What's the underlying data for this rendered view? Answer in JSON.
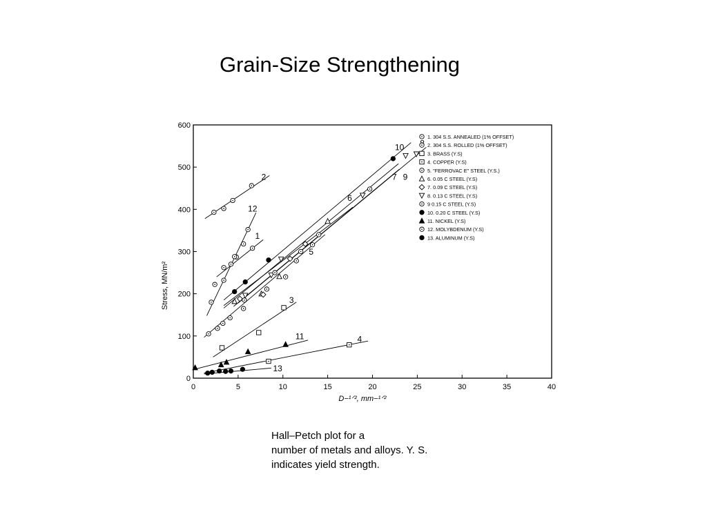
{
  "slide": {
    "title": "Grain-Size Strengthening",
    "caption": [
      "Hall–Petch plot for a",
      "number of metals and alloys. Y. S.",
      "indicates yield strength."
    ]
  },
  "chart_data": {
    "type": "scatter",
    "xlabel": "D−¹ᐟ², mm−¹ᐟ²",
    "ylabel": "Stress, MN/m²",
    "xlim": [
      0,
      40
    ],
    "ylim": [
      0,
      600
    ],
    "x_ticks": [
      "0",
      "5",
      "10",
      "15",
      "20",
      "25",
      "30",
      "35",
      "40"
    ],
    "y_ticks": [
      "0",
      "100",
      "200",
      "300",
      "400",
      "500",
      "600"
    ],
    "legend_position": "top-right",
    "series": [
      {
        "name": "1. 304 S.S. ANNEALED (1% OFFSET)",
        "number": "1",
        "marker": "circle-dot",
        "points": [
          [
            3.4,
            262
          ],
          [
            4.2,
            270
          ],
          [
            4.8,
            287
          ],
          [
            6.6,
            308
          ]
        ],
        "line": [
          [
            2.6,
            240
          ],
          [
            7.8,
            328
          ]
        ],
        "label_pos": [
          6.9,
          330
        ]
      },
      {
        "name": "2. 304 S.S. ROLLED (1% OFFSET)",
        "number": "2",
        "marker": "circle-dot",
        "points": [
          [
            2.3,
            393
          ],
          [
            3.4,
            402
          ],
          [
            4.4,
            421
          ],
          [
            6.5,
            456
          ]
        ],
        "line": [
          [
            1.3,
            378
          ],
          [
            8.5,
            480
          ]
        ],
        "label_pos": [
          7.6,
          470
        ]
      },
      {
        "name": "3. BRASS (Y.S)",
        "number": "3",
        "marker": "square",
        "points": [
          [
            3.2,
            72
          ],
          [
            7.3,
            108
          ],
          [
            10.1,
            167
          ]
        ],
        "line": [
          [
            2.2,
            50
          ],
          [
            11.5,
            180
          ]
        ],
        "label_pos": [
          10.7,
          178
        ]
      },
      {
        "name": "4. COPPER (Y.S)",
        "number": "4",
        "marker": "square-dot",
        "points": [
          [
            8.4,
            40
          ],
          [
            17.4,
            79
          ]
        ],
        "line": [
          [
            1.2,
            12
          ],
          [
            19.5,
            88
          ]
        ],
        "label_pos": [
          18.3,
          86
        ]
      },
      {
        "name": "5. \"FERROVAC E\" STEEL (Y.S.)",
        "number": "5",
        "marker": "circle-dot",
        "points": [
          [
            1.7,
            105
          ],
          [
            2.7,
            118
          ],
          [
            3.3,
            130
          ],
          [
            4.1,
            143
          ],
          [
            5.6,
            165
          ],
          [
            8.2,
            211
          ],
          [
            10.3,
            240
          ],
          [
            11.5,
            278
          ],
          [
            13.3,
            316
          ],
          [
            14.0,
            340
          ]
        ],
        "line": [
          [
            1.2,
            97
          ],
          [
            14.7,
            340
          ]
        ],
        "label_pos": [
          12.9,
          293
        ]
      },
      {
        "name": "6. 0.05 C STEEL (Y.S)",
        "number": "6",
        "marker": "triangle",
        "points": [
          [
            4.6,
            182
          ],
          [
            7.6,
            200
          ],
          [
            9.6,
            241
          ],
          [
            15.0,
            372
          ]
        ],
        "line": [
          [
            3.4,
            172
          ],
          [
            17.8,
            405
          ]
        ],
        "label_pos": [
          17.2,
          420
        ]
      },
      {
        "name": "7. 0.09 C STEEL (Y.S)",
        "number": "7",
        "marker": "diamond",
        "points": [
          [
            5.2,
            188
          ],
          [
            7.8,
            198
          ],
          [
            10.8,
            283
          ],
          [
            12.5,
            318
          ]
        ],
        "line": [
          [
            3.4,
            166
          ],
          [
            22.9,
            508
          ]
        ],
        "label_pos": [
          22.2,
          470
        ]
      },
      {
        "name": "8. 0.13 C STEEL (Y.S)",
        "number": "8",
        "marker": "triangle-down",
        "points": [
          [
            5.8,
            196
          ],
          [
            8.7,
            244
          ],
          [
            9.8,
            282
          ],
          [
            18.9,
            433
          ],
          [
            23.7,
            527
          ],
          [
            24.9,
            531
          ]
        ],
        "line": [
          [
            5.0,
            178
          ],
          [
            26.0,
            547
          ]
        ],
        "label_pos": [
          25.3,
          550
        ]
      },
      {
        "name": "9 0.15 C STEEL (Y.S)",
        "number": "9",
        "marker": "circle-dot",
        "points": [
          [
            5.7,
            185
          ],
          [
            9.1,
            250
          ],
          [
            12.0,
            300
          ],
          [
            19.7,
            448
          ]
        ],
        "line": [
          [
            4.5,
            170
          ],
          [
            23.0,
            495
          ]
        ],
        "label_pos": [
          23.4,
          470
        ]
      },
      {
        "name": "10. 0.20 C STEEL (Y.S)",
        "number": "10",
        "marker": "filled-circle",
        "points": [
          [
            4.6,
            205
          ],
          [
            5.8,
            228
          ],
          [
            8.4,
            280
          ],
          [
            22.3,
            520
          ]
        ],
        "line": [
          [
            3.4,
            185
          ],
          [
            24.3,
            558
          ]
        ],
        "label_pos": [
          22.5,
          540
        ]
      },
      {
        "name": "11. NICKEL (Y.S)",
        "number": "11",
        "marker": "filled-triangle",
        "points": [
          [
            0.2,
            25
          ],
          [
            3.1,
            32
          ],
          [
            3.7,
            38
          ],
          [
            6.1,
            63
          ],
          [
            10.3,
            80
          ]
        ],
        "line": [
          [
            0.3,
            22
          ],
          [
            12.8,
            90
          ]
        ],
        "label_pos": [
          11.4,
          92
        ]
      },
      {
        "name": "12. MOLYBDENUM (Y.S)",
        "number": "12",
        "marker": "circle-dot",
        "points": [
          [
            2.0,
            180
          ],
          [
            2.4,
            222
          ],
          [
            3.4,
            232
          ],
          [
            4.6,
            288
          ],
          [
            5.6,
            318
          ],
          [
            6.1,
            352
          ]
        ],
        "line": [
          [
            1.5,
            148
          ],
          [
            7.0,
            392
          ]
        ],
        "label_pos": [
          6.1,
          395
        ]
      },
      {
        "name": "13. ALUMINUM (Y.S)",
        "number": "13",
        "marker": "filled-circle",
        "points": [
          [
            1.6,
            12
          ],
          [
            2.1,
            14
          ],
          [
            2.9,
            17
          ],
          [
            3.6,
            16
          ],
          [
            4.2,
            17
          ],
          [
            5.5,
            21
          ]
        ],
        "line": [
          [
            1.2,
            10
          ],
          [
            8.7,
            24
          ]
        ],
        "label_pos": [
          8.9,
          16
        ]
      }
    ]
  }
}
